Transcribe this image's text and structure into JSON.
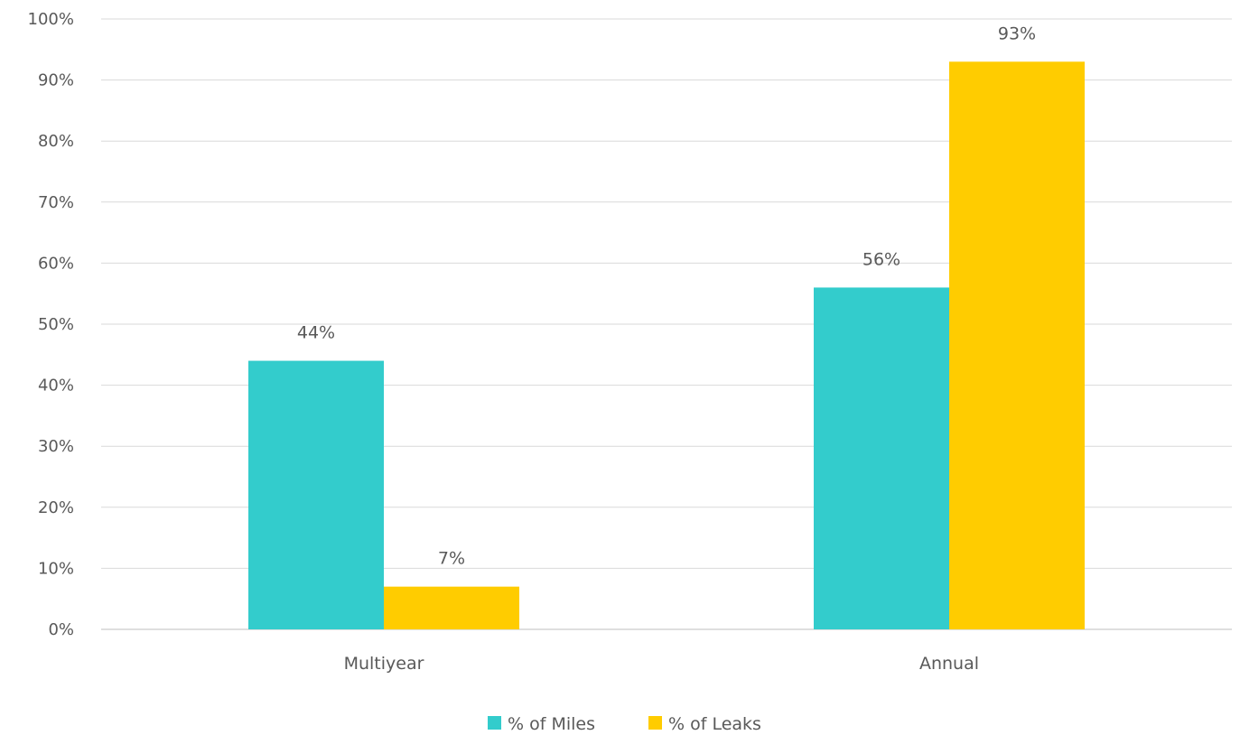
{
  "chart_data": {
    "type": "bar",
    "categories": [
      "Multiyear",
      "Annual"
    ],
    "series": [
      {
        "name": "% of Miles",
        "values": [
          44,
          56
        ],
        "color": "#33CCCC"
      },
      {
        "name": "% of Leaks",
        "values": [
          7,
          93
        ],
        "color": "#FFCC00"
      }
    ],
    "value_suffix": "%",
    "ylim": [
      0,
      100
    ],
    "ytick_step": 10,
    "grid": true,
    "legend_position": "bottom",
    "data_labels": true
  }
}
